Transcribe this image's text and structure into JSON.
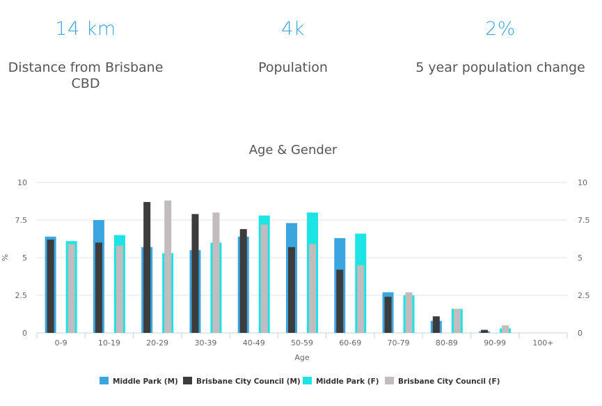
{
  "stats": [
    {
      "value": "14 km",
      "label": "Distance from Brisbane CBD"
    },
    {
      "value": "4k",
      "label": "Population"
    },
    {
      "value": "2%",
      "label": "5 year population change"
    }
  ],
  "colors": {
    "accent": "#3aa5de",
    "middle_park_m": "#3aa5de",
    "brisbane_m": "#3c3c3c",
    "middle_park_f": "#1de4e4",
    "brisbane_f": "#c2bcbe"
  },
  "chart_data": {
    "type": "bar",
    "title": "Age & Gender",
    "xlabel": "Age",
    "ylabel": "%",
    "ylim": [
      0,
      10
    ],
    "yticks": [
      "0",
      "2.5",
      "5",
      "7.5",
      "10"
    ],
    "ytick_values": [
      0,
      2.5,
      5,
      7.5,
      10
    ],
    "categories": [
      "0-9",
      "10-19",
      "20-29",
      "30-39",
      "40-49",
      "50-59",
      "60-69",
      "70-79",
      "80-89",
      "90-99",
      "100+"
    ],
    "series": [
      {
        "name": "Middle Park (M)",
        "values": [
          6.4,
          7.5,
          5.7,
          5.5,
          6.4,
          7.3,
          6.3,
          2.7,
          0.8,
          0.1,
          0
        ]
      },
      {
        "name": "Brisbane City Council (M)",
        "values": [
          6.2,
          6.0,
          8.7,
          7.9,
          6.9,
          5.7,
          4.2,
          2.4,
          1.1,
          0.2,
          0
        ]
      },
      {
        "name": "Middle Park (F)",
        "values": [
          6.1,
          6.5,
          5.3,
          6.0,
          7.8,
          8.0,
          6.6,
          2.5,
          1.6,
          0.3,
          0
        ]
      },
      {
        "name": "Brisbane City Council (F)",
        "values": [
          5.9,
          5.8,
          8.8,
          8.0,
          7.2,
          5.9,
          4.5,
          2.7,
          1.6,
          0.5,
          0
        ]
      }
    ],
    "legend_position": "bottom"
  }
}
